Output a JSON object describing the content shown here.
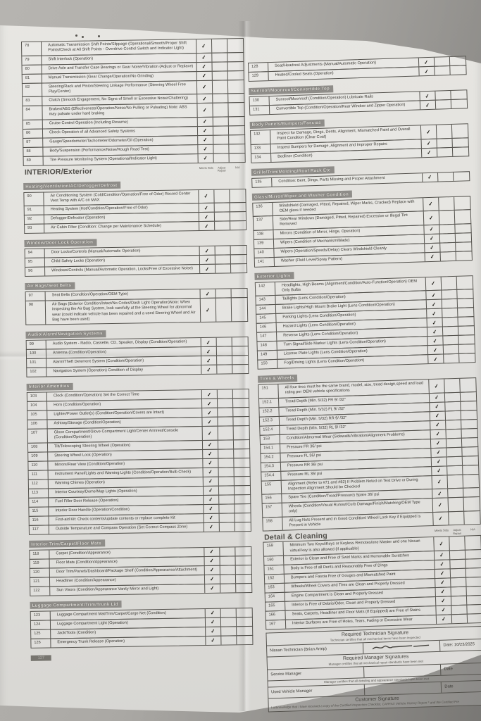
{
  "colors": {
    "paper": "#e4e3df",
    "background": "#aca9a5",
    "ink": "#3a3833",
    "section_bar": "#8f8d89"
  },
  "check_headers": [
    "Meets Stds",
    "Adjust Repair",
    "N/A"
  ],
  "left_rows": [
    {
      "t": "i",
      "n": "78",
      "x": "Automatic Transmission Shift Points/Slippage (Operational/Smooth/Proper Shift Points/Check at All  Shift Points - Overdrive Control Switch and Indicator Light)",
      "c": 0
    },
    {
      "t": "i",
      "n": "79",
      "x": "Shift Interlock (Operation)",
      "c": 0
    },
    {
      "t": "i",
      "n": "80",
      "x": "Drive Axle and Transfer Case Bearings or Gear Noise/Vibration (Adjust or Replace)",
      "c": 0
    },
    {
      "t": "i",
      "n": "81",
      "x": "Manual Transmission (Gear Change/Operation/No Grinding)",
      "c": 0
    },
    {
      "t": "i",
      "n": "82",
      "x": "Steering/Rack and Pinion/Steering Linkage Performance (Steering Wheel Free Play/Center)",
      "c": 0
    },
    {
      "t": "i",
      "n": "83",
      "x": "Clutch (Smooth Engagement, No Signs of Smell or Excessive Noise/Chattering)",
      "c": 0
    },
    {
      "t": "i",
      "n": "84",
      "x": "Brakes/ABS (Effectiveness/Operation/Noise/No Pulling or Pulsating) Note: ABS may pulsate under hard braking",
      "c": 0
    },
    {
      "t": "i",
      "n": "85",
      "x": "Cruise Control Operation (Including Resume)",
      "c": 0
    },
    {
      "t": "i",
      "n": "86",
      "x": "Check Operation of all Advanced Safety Systems",
      "c": 0
    },
    {
      "t": "i",
      "n": "87",
      "x": "Gauge/Speedometer/Tachometer/Odometer/Oil (Operation)",
      "c": 0
    },
    {
      "t": "i",
      "n": "88",
      "x": "Body/Suspension (Performance/Noise/Rough Road Test)",
      "c": 0
    },
    {
      "t": "i",
      "n": "89",
      "x": "Tire Pressure Monitoring System (Operational/Indicator Light)",
      "c": 0
    },
    {
      "t": "h",
      "x": "INTERIOR/Exterior"
    },
    {
      "t": "s",
      "x": "Heating/Ventilation/AC/Defogger/Defrost"
    },
    {
      "t": "i",
      "n": "90",
      "x": "Air Conditioning System (Cold/Condition/Operation/Free of Odor) Record Center Vent Temp with A/C on MAX",
      "c": 0
    },
    {
      "t": "i",
      "n": "91",
      "x": "Heating System (Hot/Condition/Operation/Free of Odor)",
      "c": 0
    },
    {
      "t": "i",
      "n": "92",
      "x": "Defogger/Defroster (Operation)",
      "c": 0
    },
    {
      "t": "i",
      "n": "93",
      "x": "Air Cabin Filter (Condition: Change per Maintenance Schedule)",
      "c": 0
    },
    {
      "t": "s",
      "x": "Window/Door Lock Operation"
    },
    {
      "t": "i",
      "n": "94",
      "x": "Door Locks/Controls (Manual/Automatic Operation)",
      "c": 0
    },
    {
      "t": "i",
      "n": "95",
      "x": "Child Safety Locks (Operation)",
      "c": 0
    },
    {
      "t": "i",
      "n": "96",
      "x": "Windows/Controls (Manual/Automatic Operation, Locks/Free of Excessive Noise)",
      "c": 0
    },
    {
      "t": "s",
      "x": "Air Bags/Seat Belts"
    },
    {
      "t": "i",
      "n": "97",
      "x": "Seat Belts (Condition/Operation/OEM Type)",
      "c": 0
    },
    {
      "t": "i",
      "n": "98",
      "x": "Air Bags (Exterior Condition/Intact/No Codes/Dash Light Operation)Note: When inspecting the Air Bag System, look carefully at the  Steering Wheel for abnormal wear (could indicate vehicle has been  repaired and a used Steering Wheel and Air Bag have been used)",
      "c": 0
    },
    {
      "t": "s",
      "x": "Audio/Alarm/Navigation Systems"
    },
    {
      "t": "i",
      "n": "99",
      "x": "Audio System - Radio, Cassette, CD, Speaker, Display (Condition/Operation)",
      "c": 0
    },
    {
      "t": "i",
      "n": "100",
      "x": "Antenna (Condition/Operation)",
      "c": 0
    },
    {
      "t": "i",
      "n": "101",
      "x": "Alarm/Theft Deterrent System (Condition/Operation)",
      "c": 0
    },
    {
      "t": "i",
      "n": "102",
      "x": "Navigation System (Operation) Condition of Display",
      "c": 0
    },
    {
      "t": "s",
      "x": "Interior Amenities"
    },
    {
      "t": "i",
      "n": "103",
      "x": "Clock (Condition/Operation) Set the Correct Time",
      "c": 0
    },
    {
      "t": "i",
      "n": "104",
      "x": "Horn (Condition/Operation)",
      "c": 0
    },
    {
      "t": "i",
      "n": "105",
      "x": "Lighter/Power Outlet(s) (Condition/Operation/Covers are Intact)",
      "c": 0
    },
    {
      "t": "i",
      "n": "106",
      "x": "Ashtray/Storage (Condition/Operation)",
      "c": 0
    },
    {
      "t": "i",
      "n": "107",
      "x": "Glove Compartment/Glove Compartment Light/Center Armrest/Console (Condition/Operation)",
      "c": 0
    },
    {
      "t": "i",
      "n": "108",
      "x": "Tilt/Telescoping Steering Wheel (Operation)",
      "c": 0
    },
    {
      "t": "i",
      "n": "109",
      "x": "Steering Wheel Lock (Operation)",
      "c": 0
    },
    {
      "t": "i",
      "n": "110",
      "x": "Mirrors/Rear View (Condition/Operation)",
      "c": 0
    },
    {
      "t": "i",
      "n": "111",
      "x": "Instrument Panel/Lights and Warning Lights (Condition/Operation/Bulb Check)",
      "c": 0
    },
    {
      "t": "i",
      "n": "112",
      "x": "Warning Chimes (Operation)",
      "c": 0
    },
    {
      "t": "i",
      "n": "113",
      "x": "Interior Courtesy/Dome/Map Lights (Operation)",
      "c": 0
    },
    {
      "t": "i",
      "n": "114",
      "x": "Fuel Filler Door Release (Operation)",
      "c": 0
    },
    {
      "t": "i",
      "n": "115",
      "x": "Interior Door Handle (Operation/Condition)",
      "c": 0
    },
    {
      "t": "i",
      "n": "116",
      "x": "First-aid Kit: Check contents/update contents or replace complete Kit",
      "c": 0
    },
    {
      "t": "i",
      "n": "117",
      "x": "Outside Temperature and Compass Operation (Set Correct Compass Zone)",
      "c": 0
    },
    {
      "t": "s",
      "x": "Interior Trim/Carpet/Floor Mats"
    },
    {
      "t": "i",
      "n": "118",
      "x": "Carpet (Condition/Appearance)",
      "c": 0
    },
    {
      "t": "i",
      "n": "119",
      "x": "Floor Mats (Condition/Appearance)",
      "c": 0
    },
    {
      "t": "i",
      "n": "120",
      "x": "Door Trim/Panels/Dashboard/Package Shelf (Condition/Appearance/Attachment)",
      "c": 0
    },
    {
      "t": "i",
      "n": "121",
      "x": "Headliner (Condition/Appearance)",
      "c": 0
    },
    {
      "t": "i",
      "n": "122",
      "x": "Sun Visors (Condition/Appearance Vanity Mirror and Light)",
      "c": 0
    },
    {
      "t": "s",
      "x": "Luggage Compartment/Trim/Trunk Lid"
    },
    {
      "t": "i",
      "n": "123",
      "x": "Luggage Compartment Mat/Trim/Carpet/Cargo Net (Condition)",
      "c": 0
    },
    {
      "t": "i",
      "n": "124",
      "x": "Luggage Compartment Light (Operation)",
      "c": 0
    },
    {
      "t": "i",
      "n": "125",
      "x": "Jack/Tools (Condition)",
      "c": 0
    },
    {
      "t": "i",
      "n": "126",
      "x": "Emergency Trunk Release (Operation)",
      "c": 0
    },
    {
      "t": "f",
      "x": "127"
    }
  ],
  "right_rows": [
    {
      "t": "i",
      "n": "128",
      "x": "Seat/Headrest Adjustments (Manual/Automatic Operation)",
      "c": 0
    },
    {
      "t": "i",
      "n": "129",
      "x": "Heated/Cooled Seats (Operation)",
      "c": 0
    },
    {
      "t": "s",
      "x": "Sunroof/Moonroof/Convertible Top"
    },
    {
      "t": "i",
      "n": "130",
      "x": "Sunroof/Moonroof (Condition/Operation) Lubricate Rails",
      "c": 0
    },
    {
      "t": "i",
      "n": "131",
      "x": "Convertible Top (Condition/Operation/Rear Window and Zipper Operation)",
      "c": 0
    },
    {
      "t": "s",
      "x": "Body Panels/Bumpers/Fascias"
    },
    {
      "t": "i",
      "n": "132",
      "x": "Inspect for Damage, Dings, Dents, Alignment, Mismatched Paint and Overall Paint Condition (Clear Coat)",
      "c": 0
    },
    {
      "t": "i",
      "n": "133",
      "x": "Inspect Bumpers for Damage, Alignment and Improper Repairs",
      "c": 0
    },
    {
      "t": "i",
      "n": "134",
      "x": "Bedliner (Condition)",
      "c": 0
    },
    {
      "t": "s",
      "x": "Grille/Trim/Molding/Roof Rack Etc"
    },
    {
      "t": "i",
      "n": "135",
      "x": "Condition: Bent, Dings, Parts Missing and Proper Attachment",
      "c": 0
    },
    {
      "t": "s",
      "x": "Glass/Mirror/Wiper and Washer Condition"
    },
    {
      "t": "i",
      "n": "136",
      "x": "Windshield (Damaged, Pitted, Repaired, Wiper Marks, Cracked) Replace with OEM glass if needed",
      "c": 0
    },
    {
      "t": "i",
      "n": "137",
      "x": "Side/Rear Windows (Damaged, Pitted, Repaired) Excessive or Illegal Tint Removed",
      "c": 0
    },
    {
      "t": "i",
      "n": "138",
      "x": "Mirrors (Condition of Mirror, Hinge, Operation)",
      "c": 0
    },
    {
      "t": "i",
      "n": "139",
      "x": "Wipers (Condition of Mechanism/Blade)",
      "c": 0
    },
    {
      "t": "i",
      "n": "140",
      "x": "Wipers (Operation/Speeds/Delay) Clears Windshield Cleanly",
      "c": 0
    },
    {
      "t": "i",
      "n": "141",
      "x": "Washer (Fluid Level/Spray Pattern)",
      "c": 0
    },
    {
      "t": "s",
      "x": "Exterior Lights"
    },
    {
      "t": "i",
      "n": "142",
      "x": "Headlights, High Beams (Alignment/Condition/Auto-Function/Operation) OEM Only Bulbs",
      "c": 0
    },
    {
      "t": "i",
      "n": "143",
      "x": "Taillights (Lens Condition/Operation)",
      "c": 0
    },
    {
      "t": "i",
      "n": "144",
      "x": "Brake Lights/High Mount Brake Light (Lens Condition/Operation)",
      "c": 0
    },
    {
      "t": "i",
      "n": "145",
      "x": "Parking Lights (Lens Condition/Operation)",
      "c": 0
    },
    {
      "t": "i",
      "n": "146",
      "x": "Hazard Lights (Lens Condition/Operation)",
      "c": 0
    },
    {
      "t": "i",
      "n": "147",
      "x": "Reverse Lights (Lens Condition/Operation)",
      "c": 0
    },
    {
      "t": "i",
      "n": "148",
      "x": "Turn Signal/Side Marker Lights (Lens Condition/Operation)",
      "c": 0
    },
    {
      "t": "i",
      "n": "149",
      "x": "License Plate Lights (Lens Condition/Operation)",
      "c": 0
    },
    {
      "t": "i",
      "n": "150",
      "x": "Fog/Driving Lights (Lens Condition/Operation)",
      "c": 0
    },
    {
      "t": "s",
      "x": "Tires & Wheels"
    },
    {
      "t": "i",
      "n": "151",
      "x": "All four tires must be the same brand, model, size, tread design,speed and load rating per OEM vehicle specifications",
      "c": 0
    },
    {
      "t": "i",
      "n": "152.1",
      "x": "Tread Depth (Min. 5/32) FR 9/ /32\"",
      "c": 0
    },
    {
      "t": "i",
      "n": "152.2",
      "x": "Tread Depth (Min. 5/32) FL 9/ /32\"",
      "c": 0
    },
    {
      "t": "i",
      "n": "152.3",
      "x": "Tread Depth (Min. 5/32) RR 9/ /32\"",
      "c": 0
    },
    {
      "t": "i",
      "n": "152.4",
      "x": "Tread Depth (Min. 5/32) RL 9/ /32\"",
      "c": 0
    },
    {
      "t": "i",
      "n": "153",
      "x": "Condition/Abnormal Wear (Sidewalls/Vibration/Alignment Problems)",
      "c": 0
    },
    {
      "t": "i",
      "n": "154.1",
      "x": "Pressure FR 36/ psi",
      "c": 0
    },
    {
      "t": "i",
      "n": "154.2",
      "x": "Pressure FL 36/ psi",
      "c": 0
    },
    {
      "t": "i",
      "n": "154.3",
      "x": "Pressure RR 36/ psi",
      "c": 0
    },
    {
      "t": "i",
      "n": "154.4",
      "x": "Pressure RL 36/ psi",
      "c": 0
    },
    {
      "t": "i",
      "n": "155",
      "x": "Alignment (Refer to #71 and #82) If Problem Noted on Test Drive or During Inspection Alignment Should be Checked",
      "c": 0
    },
    {
      "t": "i",
      "n": "156",
      "x": "Spare Tire (Condition/Tread/Pressure) Spare 36/ psi",
      "c": 0
    },
    {
      "t": "i",
      "n": "157",
      "x": "Wheels (Condition/Visual Runout/Curb Damage/Finish/Matching/OEM Type only)",
      "c": 0
    },
    {
      "t": "i",
      "n": "158",
      "x": "All Lug Nuts Present and in Good Condition/ Wheel Lock Key if Equipped is Present in Vehicle",
      "c": 0
    },
    {
      "t": "h",
      "x": "Detail & Cleaning"
    },
    {
      "t": "i",
      "n": "159",
      "x": "Minimum Two Keys/iKeys or Keyless Remotes/one Master and one Nissan virtual key is also allowed (if applicable)",
      "c": 0
    },
    {
      "t": "i",
      "n": "160",
      "x": "Exterior is Clean and Free of Swirl Marks and Removable Scratches",
      "c": 0
    },
    {
      "t": "i",
      "n": "161",
      "x": "Body is Free of all Dents and Reasonably Free of Dings",
      "c": 0
    },
    {
      "t": "i",
      "n": "162",
      "x": "Bumpers and Fascia Free of Gouges and Mismatched Paint",
      "c": 0
    },
    {
      "t": "i",
      "n": "163",
      "x": "Wheels/Wheel Covers and Tires are Clean and Properly Dressed",
      "c": 0
    },
    {
      "t": "i",
      "n": "164",
      "x": "Engine Compartment is Clean and Properly Dressed",
      "c": 0
    },
    {
      "t": "i",
      "n": "165",
      "x": "Interior is Free of Debris/Odor, Clean and Properly Dressed",
      "c": 0
    },
    {
      "t": "i",
      "n": "166",
      "x": "Seats, Carpets, Headliner and Floor Mats (If Equipped) are Free of Stains",
      "c": 0
    },
    {
      "t": "i",
      "n": "167",
      "x": "Interior Surfaces are Free of Holes, Tears, Fading or Excessive Wear",
      "c": 0
    }
  ],
  "signatures": {
    "tech_title": "Required Technician Signature",
    "tech_sub": "Technician certifies that all mechanical items have been inspected",
    "tech_label": "Nissan Technician  (Brian Artrip)",
    "tech_date": "Date:  10/23/2025",
    "mgr_title": "Required Manager Signatures",
    "mgr_sub1": "Manager certifies that all mechanical repair standards have been met",
    "mgr_label1": "Service Manager",
    "mgr_date1": "Date",
    "mgr_sub2": "Manager certifies that all detailing and appearance standards have been met",
    "mgr_label2": "Used Vehicle Manager",
    "mgr_date2": "Date",
    "cust_title": "Customer Signature",
    "cust_ack": "I acknowledge that I have received a copy of the Certified Inspection Checklist,  CARFAX Vehicle History Report * and the Certified Pre"
  }
}
